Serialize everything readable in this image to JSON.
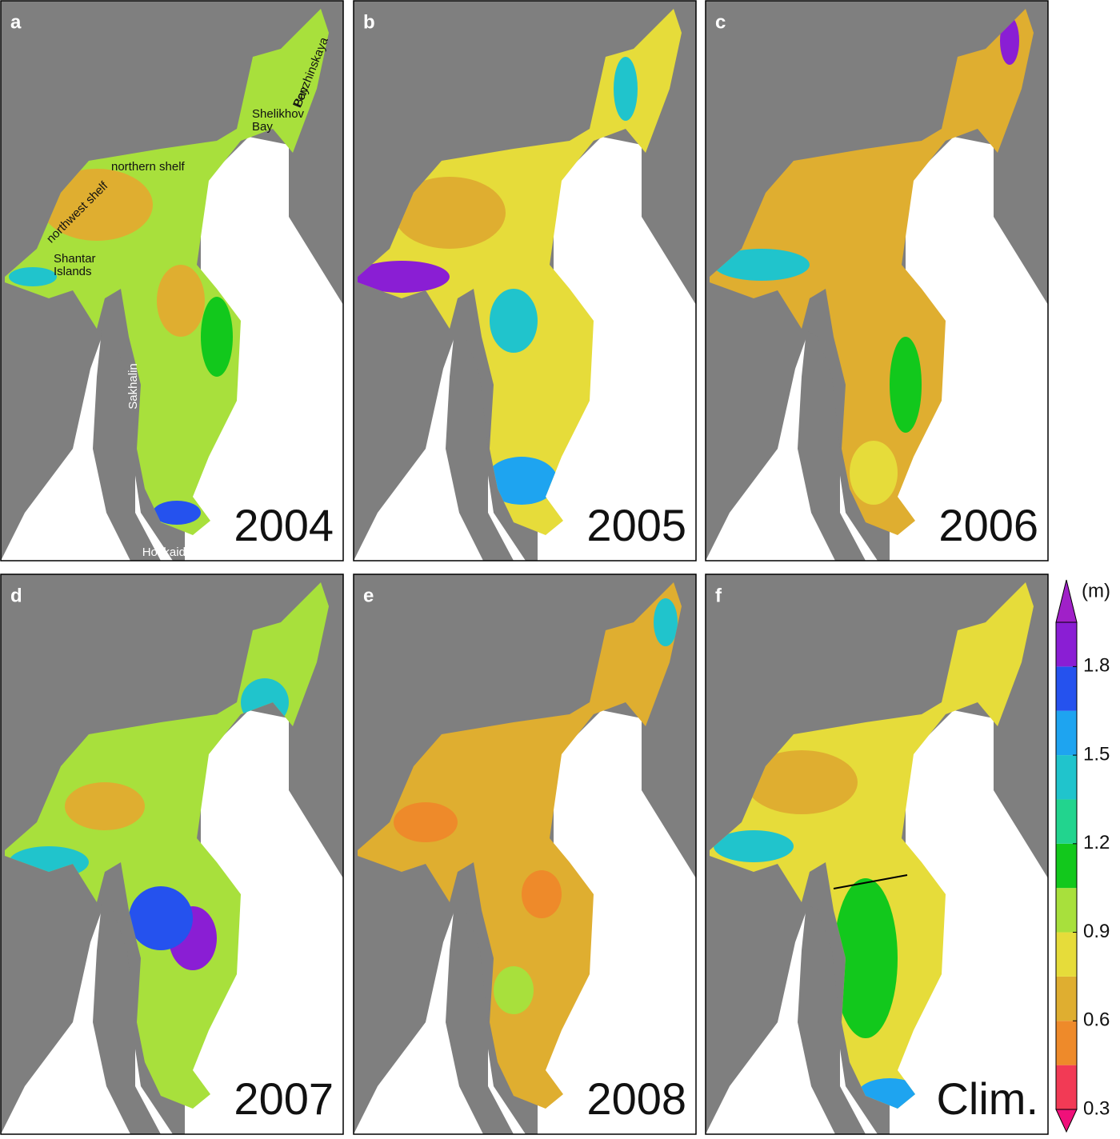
{
  "panels": [
    {
      "letter": "a",
      "label": "2004"
    },
    {
      "letter": "b",
      "label": "2005"
    },
    {
      "letter": "c",
      "label": "2006"
    },
    {
      "letter": "d",
      "label": "2007"
    },
    {
      "letter": "e",
      "label": "2008"
    },
    {
      "letter": "f",
      "label": "Clim."
    }
  ],
  "annotations": {
    "penzhinskaya": [
      "Penzhinskaya",
      "Bay"
    ],
    "shelikhov": [
      "Shelikhov",
      "Bay"
    ],
    "northern_shelf": "northern shelf",
    "northwest_shelf": "northwest shelf",
    "shantar": [
      "Shantar",
      "Islands"
    ],
    "sakhalin": "Sakhalin",
    "hokkaido": "Hokkaido"
  },
  "colorbar": {
    "unit": "(m)",
    "ylim": [
      0.3,
      1.95
    ],
    "ticks": [
      0.3,
      0.6,
      0.9,
      1.2,
      1.5,
      1.8
    ],
    "levels": [
      0.3,
      0.45,
      0.6,
      0.75,
      0.9,
      1.05,
      1.2,
      1.35,
      1.5,
      1.65,
      1.8,
      1.95
    ],
    "colors": [
      "#f23a55",
      "#ee8a2a",
      "#dfae30",
      "#e6dc3a",
      "#a8e03c",
      "#12c81c",
      "#22d48e",
      "#20c4cc",
      "#1ea4f0",
      "#2552ee",
      "#8a1ed4"
    ],
    "under_color": "#f0107a",
    "over_color": "#a020c8"
  }
}
